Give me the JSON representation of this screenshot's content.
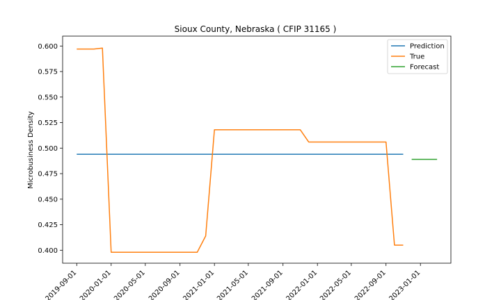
{
  "chart_data": {
    "type": "line",
    "title": "Sioux County, Nebraska ( CFIP 31165 )",
    "xlabel": "",
    "ylabel": "Microbusiness Density",
    "xlim": [
      "2019-07-13",
      "2023-04-19"
    ],
    "ylim": [
      0.3873,
      0.6097
    ],
    "x_ticks": [
      "2019-09-01",
      "2020-01-01",
      "2020-05-01",
      "2020-09-01",
      "2021-01-01",
      "2021-05-01",
      "2021-09-01",
      "2022-01-01",
      "2022-05-01",
      "2022-09-01",
      "2023-01-01"
    ],
    "y_ticks": [
      0.4,
      0.425,
      0.45,
      0.475,
      0.5,
      0.525,
      0.55,
      0.575,
      0.6
    ],
    "y_tick_labels": [
      "0.400",
      "0.425",
      "0.450",
      "0.475",
      "0.500",
      "0.525",
      "0.550",
      "0.575",
      "0.600"
    ],
    "legend_position": "top-right",
    "series": [
      {
        "name": "Prediction",
        "color": "#1f77b4",
        "points": [
          {
            "x": "2019-09-01",
            "y": 0.494
          },
          {
            "x": "2022-11-01",
            "y": 0.494
          }
        ]
      },
      {
        "name": "True",
        "color": "#ff7f0e",
        "points": [
          {
            "x": "2019-09-01",
            "y": 0.597
          },
          {
            "x": "2019-10-01",
            "y": 0.597
          },
          {
            "x": "2019-11-01",
            "y": 0.597
          },
          {
            "x": "2019-12-01",
            "y": 0.598
          },
          {
            "x": "2020-01-01",
            "y": 0.398
          },
          {
            "x": "2020-02-01",
            "y": 0.398
          },
          {
            "x": "2020-03-01",
            "y": 0.398
          },
          {
            "x": "2020-04-01",
            "y": 0.398
          },
          {
            "x": "2020-05-01",
            "y": 0.398
          },
          {
            "x": "2020-06-01",
            "y": 0.398
          },
          {
            "x": "2020-07-01",
            "y": 0.398
          },
          {
            "x": "2020-08-01",
            "y": 0.398
          },
          {
            "x": "2020-09-01",
            "y": 0.398
          },
          {
            "x": "2020-10-01",
            "y": 0.398
          },
          {
            "x": "2020-11-01",
            "y": 0.398
          },
          {
            "x": "2020-12-01",
            "y": 0.414
          },
          {
            "x": "2021-01-01",
            "y": 0.518
          },
          {
            "x": "2021-02-01",
            "y": 0.518
          },
          {
            "x": "2021-03-01",
            "y": 0.518
          },
          {
            "x": "2021-04-01",
            "y": 0.518
          },
          {
            "x": "2021-05-01",
            "y": 0.518
          },
          {
            "x": "2021-06-01",
            "y": 0.518
          },
          {
            "x": "2021-07-01",
            "y": 0.518
          },
          {
            "x": "2021-08-01",
            "y": 0.518
          },
          {
            "x": "2021-09-01",
            "y": 0.518
          },
          {
            "x": "2021-10-01",
            "y": 0.518
          },
          {
            "x": "2021-11-01",
            "y": 0.518
          },
          {
            "x": "2021-12-01",
            "y": 0.506
          },
          {
            "x": "2022-01-01",
            "y": 0.506
          },
          {
            "x": "2022-02-01",
            "y": 0.506
          },
          {
            "x": "2022-03-01",
            "y": 0.506
          },
          {
            "x": "2022-04-01",
            "y": 0.506
          },
          {
            "x": "2022-05-01",
            "y": 0.506
          },
          {
            "x": "2022-06-01",
            "y": 0.506
          },
          {
            "x": "2022-07-01",
            "y": 0.506
          },
          {
            "x": "2022-08-01",
            "y": 0.506
          },
          {
            "x": "2022-09-01",
            "y": 0.506
          },
          {
            "x": "2022-10-01",
            "y": 0.405
          },
          {
            "x": "2022-11-01",
            "y": 0.405
          }
        ]
      },
      {
        "name": "Forecast",
        "color": "#2ca02c",
        "points": [
          {
            "x": "2022-12-01",
            "y": 0.489
          },
          {
            "x": "2023-03-01",
            "y": 0.489
          }
        ]
      }
    ]
  }
}
